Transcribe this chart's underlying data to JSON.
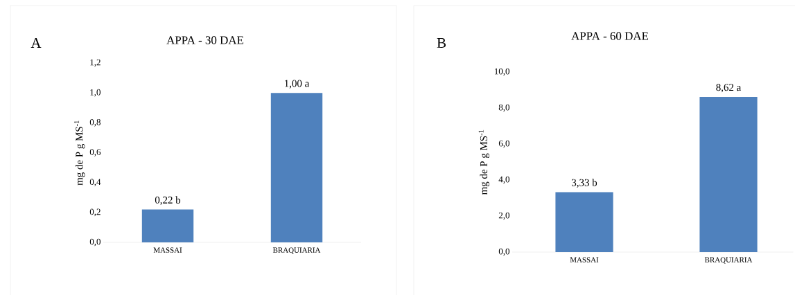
{
  "chart_data": [
    {
      "type": "bar",
      "title": "APPA - 30 DAE",
      "ylabel": "mg de P g MS$^{-1}$",
      "annotations": [
        "A"
      ],
      "categories": [
        "MASSAI",
        "BRAQUIARIA"
      ],
      "values": [
        0.22,
        1.0
      ],
      "value_labels": [
        "0,22 b",
        "1,00 a"
      ],
      "color": "#4f81bd",
      "ylim": [
        0,
        1.2
      ],
      "yticks": [
        {
          "value": 0,
          "label": "0,0"
        },
        {
          "value": 0.2,
          "label": "0,2"
        },
        {
          "value": 0.4,
          "label": "0,4"
        },
        {
          "value": 0.6,
          "label": "0,6"
        },
        {
          "value": 0.8,
          "label": "0,8"
        },
        {
          "value": 1.0,
          "label": "1,0"
        },
        {
          "value": 1.2,
          "label": "1,2"
        }
      ]
    },
    {
      "type": "bar",
      "title": "APPA - 60 DAE",
      "ylabel": "mg de P g MS$^{-1}$",
      "annotations": [
        "B"
      ],
      "categories": [
        "MASSAI",
        "BRAQUIARIA"
      ],
      "values": [
        3.33,
        8.62
      ],
      "value_labels": [
        "3,33 b",
        "8,62 a"
      ],
      "color": "#4f81bd",
      "ylim": [
        0,
        10
      ],
      "yticks": [
        {
          "value": 0,
          "label": "0,0"
        },
        {
          "value": 2,
          "label": "2,0"
        },
        {
          "value": 4,
          "label": "4,0"
        },
        {
          "value": 6,
          "label": "6,0"
        },
        {
          "value": 8,
          "label": "8,0"
        },
        {
          "value": 10,
          "label": "10,0"
        }
      ]
    }
  ]
}
